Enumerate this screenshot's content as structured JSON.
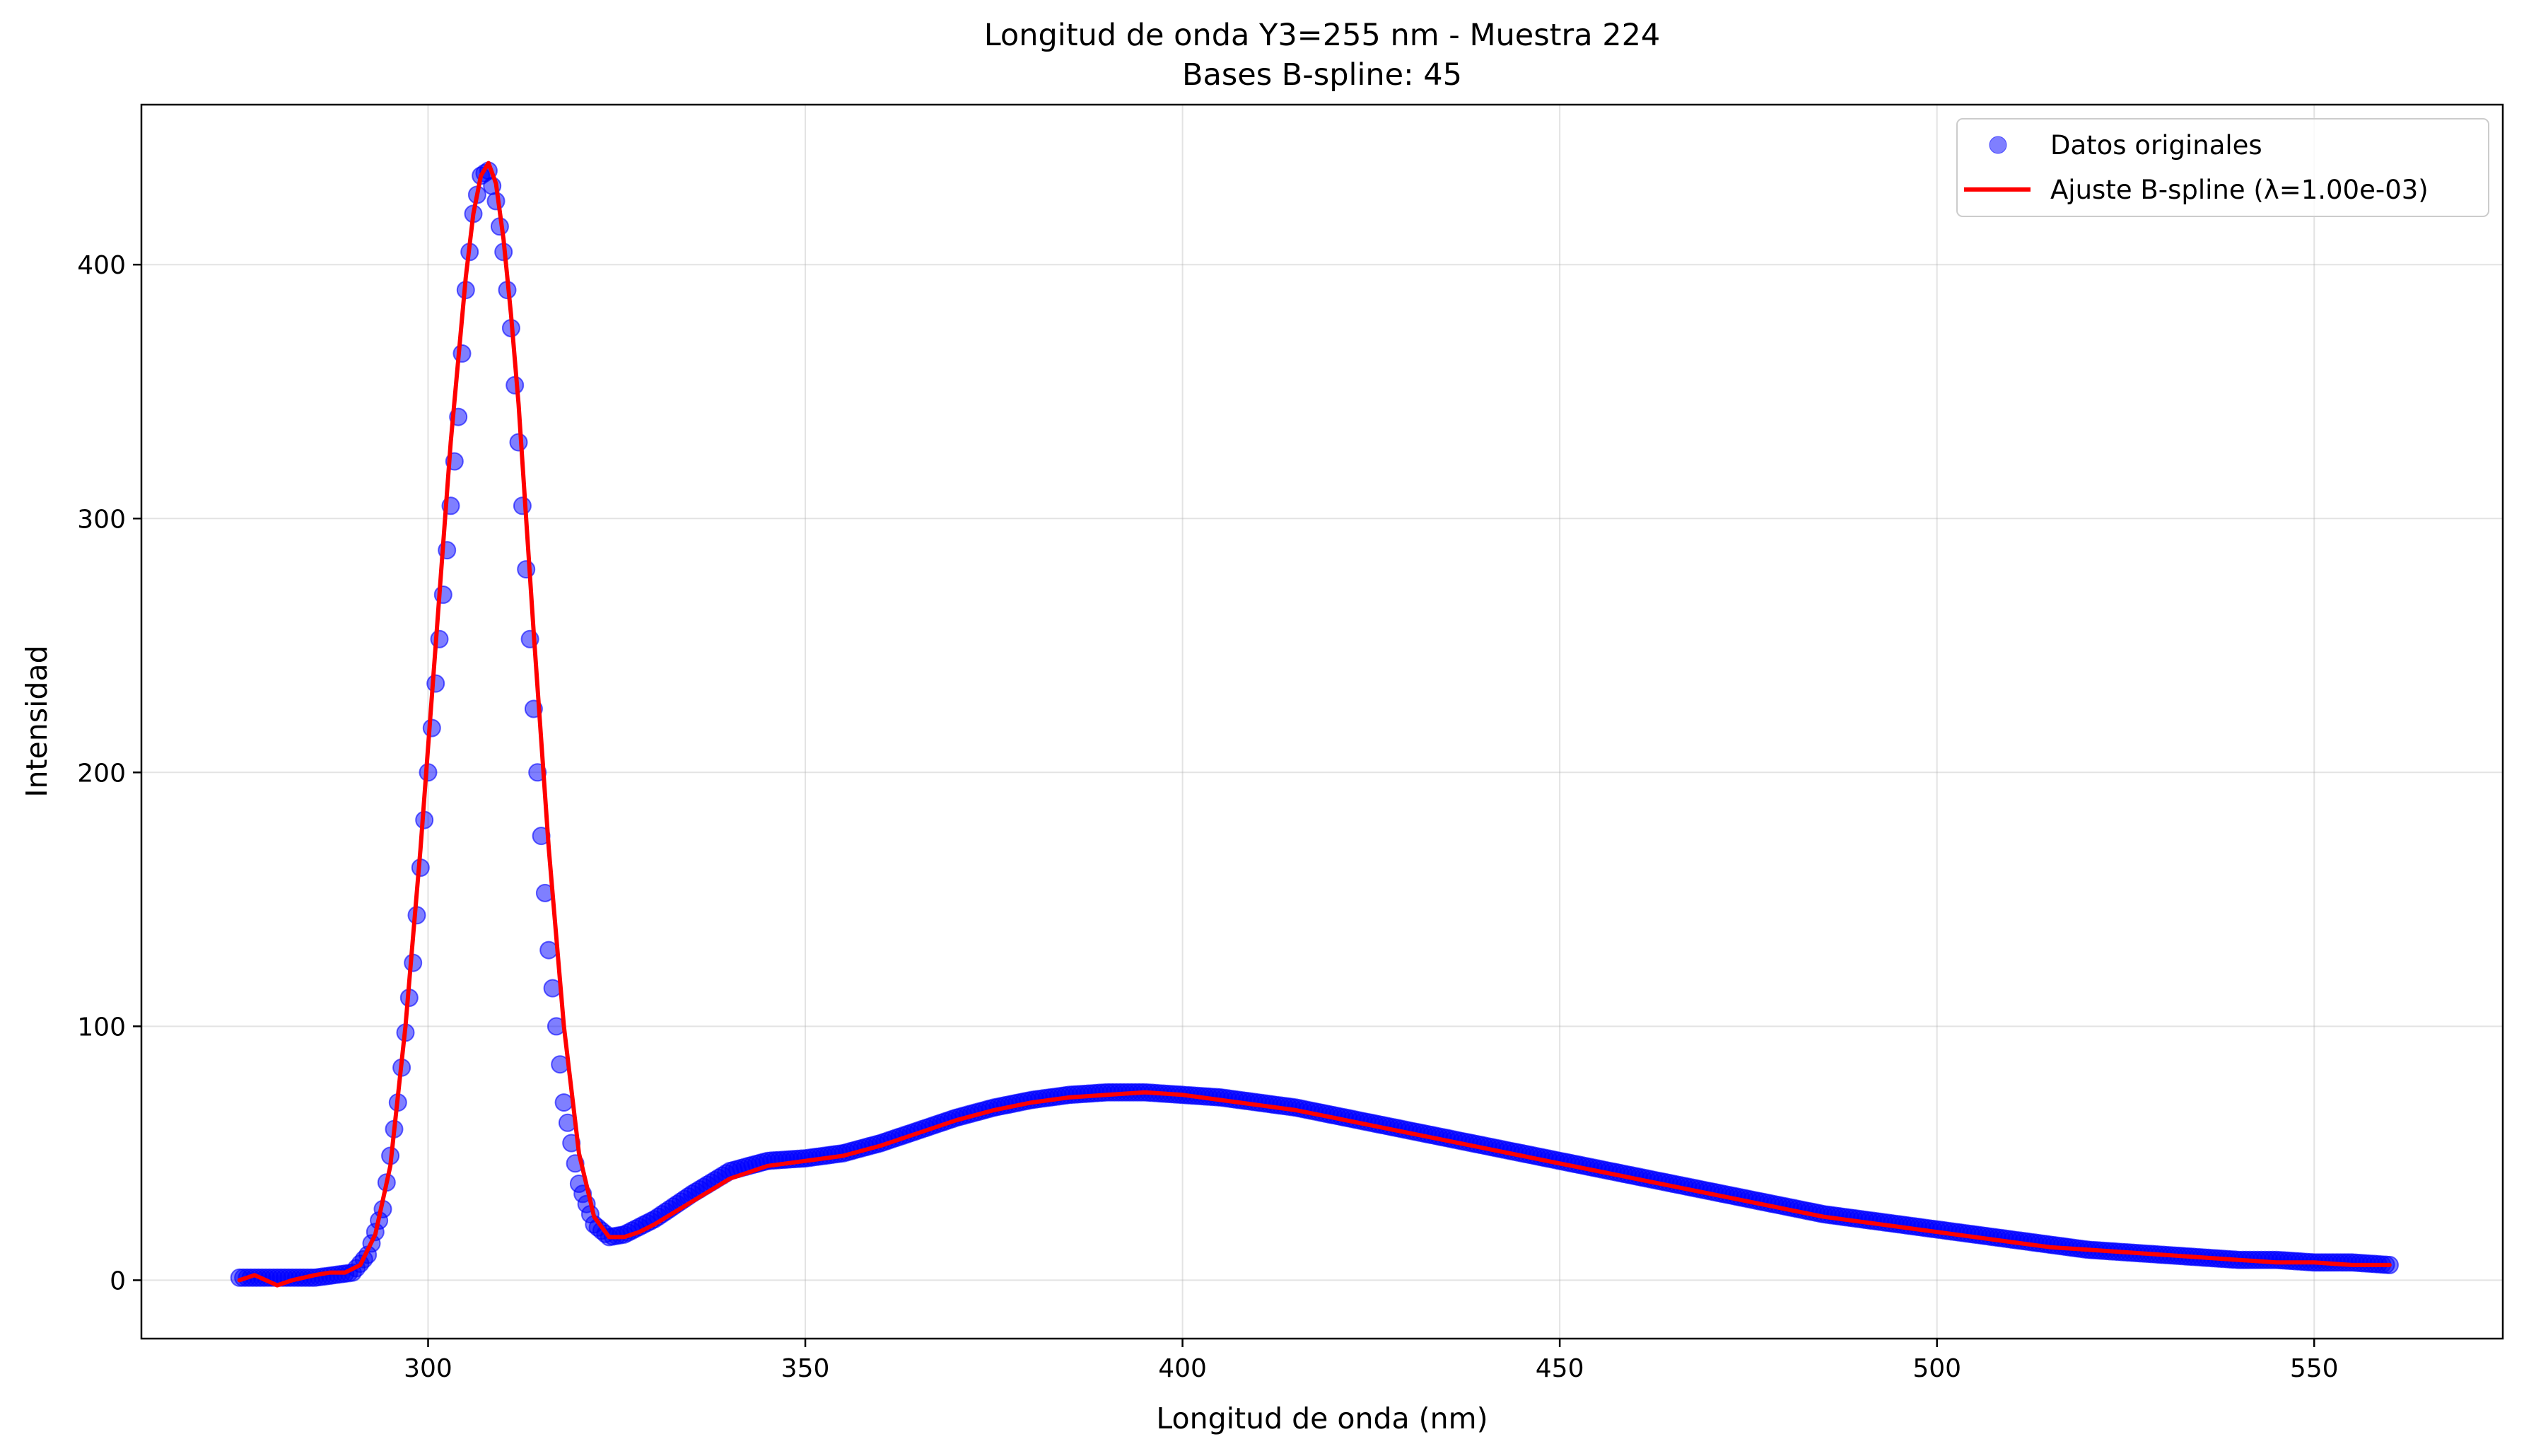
{
  "chart_data": {
    "type": "scatter",
    "title": "Longitud de onda Y3=255 nm - Muestra 224",
    "subtitle": "Bases B-spline: 45",
    "xlabel": "Longitud de onda (nm)",
    "ylabel": "Intensidad",
    "xlim": [
      262,
      575
    ],
    "ylim": [
      -23,
      463
    ],
    "xticks": [
      300,
      350,
      400,
      450,
      500,
      550
    ],
    "yticks": [
      0,
      100,
      200,
      300,
      400
    ],
    "grid": true,
    "legend_position": "top-right",
    "series": [
      {
        "name": "Datos originales",
        "kind": "scatter",
        "color": "#0000ff",
        "x": [
          275,
          280,
          285,
          290,
          292,
          294,
          296,
          298,
          300,
          302,
          304,
          305,
          306,
          307,
          308,
          309,
          310,
          311,
          312,
          313,
          314,
          315,
          316,
          318,
          320,
          322,
          324,
          326,
          330,
          335,
          340,
          345,
          350,
          355,
          360,
          365,
          370,
          375,
          380,
          385,
          390,
          395,
          400,
          405,
          410,
          415,
          420,
          425,
          430,
          435,
          440,
          445,
          450,
          455,
          460,
          465,
          470,
          475,
          480,
          485,
          490,
          495,
          500,
          505,
          510,
          515,
          520,
          525,
          530,
          535,
          540,
          545,
          550,
          555,
          560
        ],
        "y": [
          1,
          1,
          1,
          3,
          10,
          28,
          70,
          125,
          200,
          270,
          340,
          390,
          420,
          435,
          437,
          425,
          405,
          375,
          330,
          280,
          225,
          175,
          130,
          70,
          38,
          22,
          17,
          18,
          24,
          34,
          43,
          47,
          48,
          50,
          54,
          59,
          64,
          68,
          71,
          73,
          74,
          74,
          73,
          72,
          70,
          68,
          65,
          62,
          59,
          56,
          53,
          50,
          47,
          44,
          41,
          38,
          35,
          32,
          29,
          26,
          24,
          22,
          20,
          18,
          16,
          14,
          12,
          11,
          10,
          9,
          8,
          8,
          7,
          7,
          6
        ]
      },
      {
        "name": "Ajuste B-spline (λ=1.00e-03)",
        "kind": "line",
        "color": "#ff0000",
        "x": [
          275,
          277,
          280,
          282,
          285,
          287,
          289,
          291,
          293,
          295,
          297,
          299,
          301,
          303,
          305,
          306,
          307,
          308,
          309,
          310,
          311,
          312,
          313,
          314,
          316,
          318,
          320,
          322,
          324,
          326,
          328,
          330,
          335,
          340,
          345,
          350,
          355,
          360,
          365,
          370,
          375,
          380,
          385,
          390,
          395,
          400,
          405,
          410,
          415,
          420,
          425,
          430,
          435,
          440,
          445,
          450,
          455,
          460,
          465,
          470,
          475,
          480,
          485,
          490,
          495,
          500,
          505,
          510,
          515,
          520,
          525,
          530,
          535,
          540,
          545,
          550,
          555,
          560
        ],
        "y": [
          0,
          2,
          -2,
          0,
          2,
          3,
          3,
          6,
          18,
          45,
          100,
          170,
          250,
          330,
          395,
          420,
          435,
          440,
          432,
          410,
          380,
          345,
          300,
          255,
          170,
          100,
          50,
          25,
          17,
          17,
          19,
          22,
          31,
          40,
          45,
          47,
          49,
          53,
          58,
          63,
          67,
          70,
          72,
          73,
          74,
          73,
          71,
          69,
          67,
          64,
          61,
          58,
          55,
          52,
          49,
          46,
          43,
          40,
          37,
          34,
          31,
          28,
          25,
          23,
          21,
          19,
          17,
          15,
          13,
          12,
          11,
          10,
          9,
          8,
          7,
          7,
          6,
          6
        ]
      }
    ]
  }
}
